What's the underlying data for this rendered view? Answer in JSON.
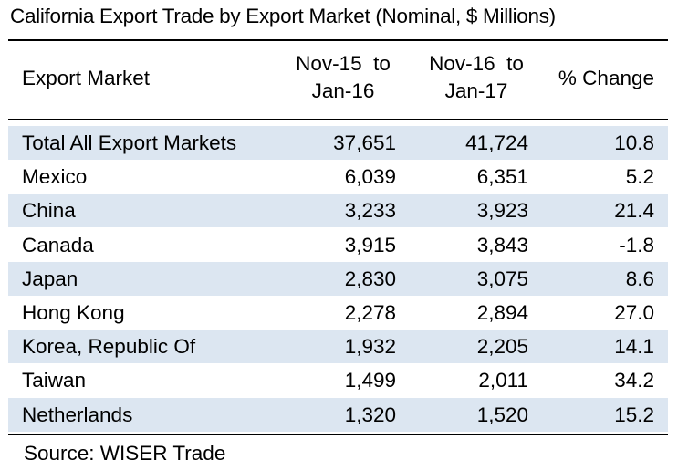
{
  "title": "California Export Trade by Export Market (Nominal, $ Millions)",
  "columns": {
    "market": "Export Market",
    "period1_line1": "Nov-15  to",
    "period1_line2": "Jan-16",
    "period2_line1": "Nov-16  to",
    "period2_line2": "Jan-17",
    "change": "% Change"
  },
  "rows": [
    {
      "market": "Total All Export Markets",
      "p1": "37,651",
      "p2": "41,724",
      "change": "10.8"
    },
    {
      "market": "Mexico",
      "p1": "6,039",
      "p2": "6,351",
      "change": "5.2"
    },
    {
      "market": "China",
      "p1": "3,233",
      "p2": "3,923",
      "change": "21.4"
    },
    {
      "market": "Canada",
      "p1": "3,915",
      "p2": "3,843",
      "change": "-1.8"
    },
    {
      "market": "Japan",
      "p1": "2,830",
      "p2": "3,075",
      "change": "8.6"
    },
    {
      "market": "Hong Kong",
      "p1": "2,278",
      "p2": "2,894",
      "change": "27.0"
    },
    {
      "market": "Korea, Republic Of",
      "p1": "1,932",
      "p2": "2,205",
      "change": "14.1"
    },
    {
      "market": "Taiwan",
      "p1": "1,499",
      "p2": "2,011",
      "change": "34.2"
    },
    {
      "market": "Netherlands",
      "p1": "1,320",
      "p2": "1,520",
      "change": "15.2"
    }
  ],
  "source": "Source: WISER Trade",
  "colors": {
    "row_shade": "#dce6f1",
    "rule": "#000000"
  }
}
